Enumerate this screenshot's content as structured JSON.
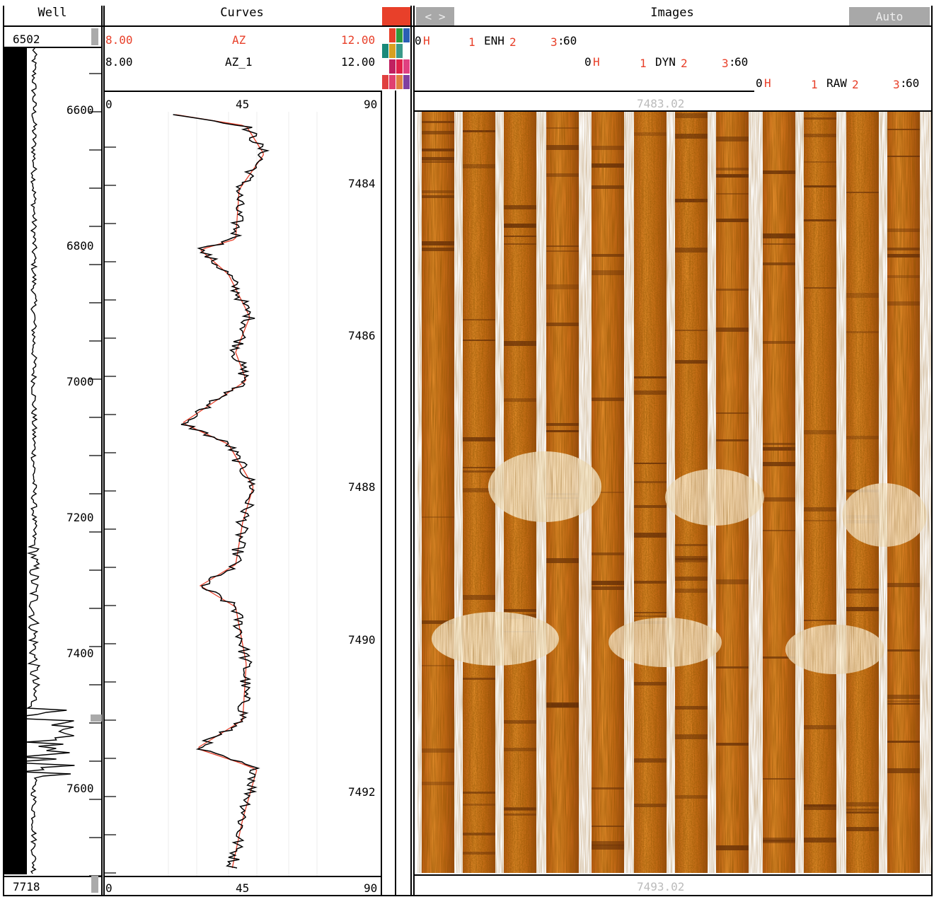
{
  "panels": {
    "well": "Well",
    "curves": "Curves",
    "images": "Images"
  },
  "well": {
    "top_depth": "6502",
    "bottom_depth": "7718",
    "depth_ticks": [
      "6600",
      "6800",
      "7000",
      "7200",
      "7400",
      "7600"
    ]
  },
  "curves": {
    "track1": {
      "name": "AZ",
      "min": "8.00",
      "max": "12.00",
      "color": "#e8402a"
    },
    "track2": {
      "name": "AZ_1",
      "min": "8.00",
      "max": "12.00",
      "color": "#000000"
    },
    "scale_top": [
      "0",
      "45",
      "90"
    ],
    "scale_bottom": [
      "0",
      "45",
      "90"
    ],
    "depth_labels": [
      "7484",
      "7486",
      "7488",
      "7490",
      "7492"
    ]
  },
  "images": {
    "nav_icon": "left-right-arrows-icon",
    "auto_button": "Auto",
    "top_depth": "7483.02",
    "bottom_depth": "7493.02",
    "strips": [
      {
        "zero": "0",
        "hi": "H",
        "one": "1",
        "name": "ENH",
        "two": "2",
        "three": "3",
        "sixty": "60"
      },
      {
        "zero": "0",
        "hi": "H",
        "one": "1",
        "name": "DYN",
        "two": "2",
        "three": "3",
        "sixty": "60"
      },
      {
        "zero": "0",
        "hi": "H",
        "one": "1",
        "name": "RAW",
        "two": "2",
        "three": "3",
        "sixty": "60"
      }
    ]
  },
  "colors": {
    "accent_red": "#e8402a",
    "image_orange": "#d9781e",
    "button_gray": "#a8a8a8",
    "palette": [
      "#e8402a",
      "#2e9a3c",
      "#2a5fb4",
      "#1a8a7a",
      "#d9a020",
      "#3a9a8a",
      "#c02060",
      "#e0204a",
      "#e04080",
      "#e04040",
      "#e04070",
      "#e08040",
      "#8040a0"
    ]
  }
}
